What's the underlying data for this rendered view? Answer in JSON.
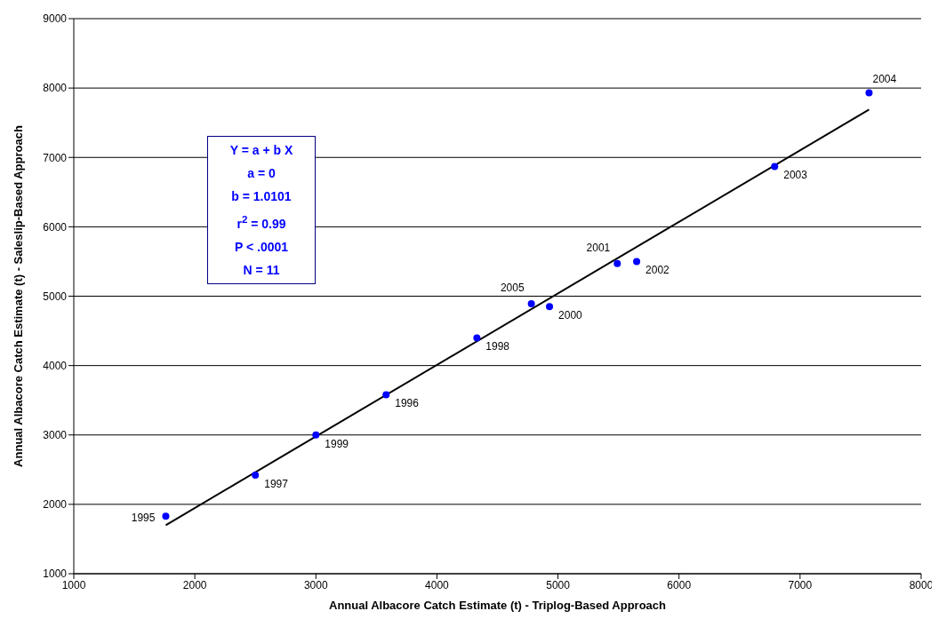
{
  "chart_data": {
    "type": "scatter",
    "xlabel": "Annual Albacore Catch Estimate (t) - Triplog-Based Approach",
    "ylabel": "Annual Albacore Catch Estimate (t) - Saleslip-Based Approach",
    "xlim": [
      1000,
      8000
    ],
    "xticks": [
      1000,
      2000,
      3000,
      4000,
      5000,
      6000,
      7000,
      8000
    ],
    "ylim": [
      1000,
      9000
    ],
    "yticks": [
      1000,
      2000,
      3000,
      4000,
      5000,
      6000,
      7000,
      8000,
      9000
    ],
    "grid": "y",
    "legend": false,
    "series": [
      {
        "color": "#0000ff",
        "marker": "circle",
        "x": [
          1760,
          2500,
          3000,
          3580,
          4330,
          4780,
          4930,
          5490,
          5650,
          6790,
          7570
        ],
        "values": [
          1830,
          2420,
          3000,
          3580,
          4400,
          4890,
          4850,
          5470,
          5500,
          6870,
          7930
        ]
      },
      {
        "type": "line",
        "marker": "none",
        "color": "#000000",
        "x": [
          1760,
          7570
        ],
        "values": [
          1700,
          7690
        ]
      }
    ],
    "annotations": [
      "Y = a + b X",
      "a = 0",
      "b = 1.0101",
      "r$^{2}$ = 0.99",
      "P < .0001",
      "N = 11",
      {
        "text": "1995",
        "x": 1760,
        "y": 1830
      },
      {
        "text": "1997",
        "x": 2500,
        "y": 2420
      },
      {
        "text": "1999",
        "x": 3000,
        "y": 3000
      },
      {
        "text": "1996",
        "x": 3580,
        "y": 3580
      },
      {
        "text": "1998",
        "x": 4330,
        "y": 4400
      },
      {
        "text": "2005",
        "x": 4780,
        "y": 4890
      },
      {
        "text": "2000",
        "x": 4930,
        "y": 4850
      },
      {
        "text": "2001",
        "x": 5490,
        "y": 5470
      },
      {
        "text": "2002",
        "x": 5650,
        "y": 5500
      },
      {
        "text": "2003",
        "x": 6790,
        "y": 6870
      },
      {
        "text": "2004",
        "x": 7570,
        "y": 7930
      }
    ]
  }
}
